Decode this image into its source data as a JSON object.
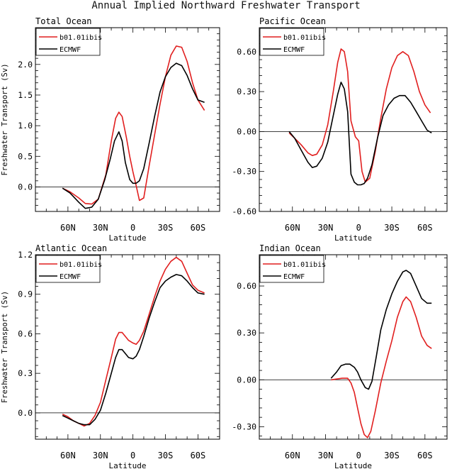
{
  "title": "Annual Implied Northward Freshwater Transport",
  "colors": {
    "model": "#e11f1f",
    "obs": "#000000",
    "zero": "#000000"
  },
  "chart_data": [
    {
      "type": "line",
      "title": "Total Ocean",
      "xlabel": "Latitude",
      "ylabel": "Freshwater Transport (Sv)",
      "xlim": [
        90,
        -80
      ],
      "ylim": [
        -0.4,
        2.6
      ],
      "xticks": [
        {
          "v": 60,
          "label": "60N"
        },
        {
          "v": 30,
          "label": "30N"
        },
        {
          "v": 0,
          "label": "0"
        },
        {
          "v": -30,
          "label": "30S"
        },
        {
          "v": -60,
          "label": "60S"
        }
      ],
      "yticks": [
        {
          "v": 0,
          "label": "0.0"
        },
        {
          "v": 0.5,
          "label": "0.5"
        },
        {
          "v": 1,
          "label": "1.0"
        },
        {
          "v": 1.5,
          "label": "1.5"
        },
        {
          "v": 2,
          "label": "2.0"
        }
      ],
      "legend": [
        "b01.01ibis",
        "ECMWF"
      ],
      "series": [
        {
          "name": "b01.01ibis",
          "x": [
            65,
            58,
            50,
            44,
            38,
            32,
            25,
            20,
            16,
            13,
            10,
            6,
            3,
            0,
            -3,
            -6,
            -10,
            -15,
            -20,
            -25,
            -30,
            -35,
            -40,
            -45,
            -50,
            -55,
            -60,
            -66
          ],
          "y": [
            -0.02,
            -0.08,
            -0.18,
            -0.27,
            -0.28,
            -0.2,
            0.2,
            0.75,
            1.12,
            1.22,
            1.15,
            0.8,
            0.5,
            0.25,
            0.02,
            -0.22,
            -0.18,
            0.35,
            0.85,
            1.35,
            1.8,
            2.15,
            2.3,
            2.28,
            2.05,
            1.7,
            1.42,
            1.25
          ]
        },
        {
          "name": "ECMWF",
          "x": [
            65,
            58,
            50,
            44,
            38,
            32,
            26,
            21,
            17,
            13,
            10,
            7,
            3,
            0,
            -3,
            -6,
            -10,
            -15,
            -20,
            -25,
            -30,
            -35,
            -40,
            -45,
            -50,
            -55,
            -60,
            -66
          ],
          "y": [
            -0.02,
            -0.1,
            -0.25,
            -0.35,
            -0.33,
            -0.2,
            0.12,
            0.45,
            0.75,
            0.9,
            0.75,
            0.4,
            0.12,
            0.06,
            0.06,
            0.1,
            0.3,
            0.72,
            1.15,
            1.55,
            1.8,
            1.95,
            2.02,
            1.98,
            1.82,
            1.6,
            1.42,
            1.38
          ]
        }
      ]
    },
    {
      "type": "line",
      "title": "Pacific Ocean",
      "xlabel": "Latitude",
      "ylabel": "",
      "xlim": [
        90,
        -80
      ],
      "ylim": [
        -0.6,
        0.78
      ],
      "xticks": [
        {
          "v": 60,
          "label": "60N"
        },
        {
          "v": 30,
          "label": "30N"
        },
        {
          "v": 0,
          "label": "0"
        },
        {
          "v": -30,
          "label": "30S"
        },
        {
          "v": -60,
          "label": "60S"
        }
      ],
      "yticks": [
        {
          "v": -0.6,
          "label": "-0.60"
        },
        {
          "v": -0.3,
          "label": "-0.30"
        },
        {
          "v": 0,
          "label": "0.00"
        },
        {
          "v": 0.3,
          "label": "0.30"
        },
        {
          "v": 0.6,
          "label": "0.60"
        }
      ],
      "legend": [
        "b01.01ibis",
        "ECMWF"
      ],
      "series": [
        {
          "name": "b01.01ibis",
          "x": [
            63,
            58,
            52,
            46,
            42,
            38,
            33,
            28,
            23,
            19,
            16,
            13,
            10,
            7,
            3,
            0,
            -3,
            -6,
            -10,
            -15,
            -20,
            -25,
            -30,
            -35,
            -40,
            -45,
            -50,
            -55,
            -60,
            -65
          ],
          "y": [
            -0.01,
            -0.05,
            -0.1,
            -0.16,
            -0.18,
            -0.17,
            -0.1,
            0.05,
            0.3,
            0.52,
            0.62,
            0.6,
            0.45,
            0.08,
            -0.04,
            -0.07,
            -0.3,
            -0.38,
            -0.35,
            -0.15,
            0.1,
            0.32,
            0.48,
            0.57,
            0.6,
            0.57,
            0.45,
            0.3,
            0.2,
            0.14
          ]
        },
        {
          "name": "ECMWF",
          "x": [
            63,
            58,
            52,
            46,
            42,
            38,
            33,
            28,
            23,
            19,
            16,
            13,
            10,
            7,
            4,
            1,
            -2,
            -5,
            -8,
            -12,
            -17,
            -22,
            -27,
            -32,
            -37,
            -42,
            -47,
            -52,
            -57,
            -62,
            -66
          ],
          "y": [
            0,
            -0.05,
            -0.14,
            -0.23,
            -0.27,
            -0.26,
            -0.2,
            -0.08,
            0.12,
            0.28,
            0.37,
            0.32,
            0.15,
            -0.32,
            -0.38,
            -0.4,
            -0.4,
            -0.39,
            -0.35,
            -0.25,
            -0.05,
            0.12,
            0.2,
            0.25,
            0.27,
            0.27,
            0.22,
            0.15,
            0.08,
            0.01,
            -0.01
          ]
        }
      ]
    },
    {
      "type": "line",
      "title": "Atlantic Ocean",
      "xlabel": "Latitude",
      "ylabel": "Freshwater Transport (Sv)",
      "xlim": [
        90,
        -80
      ],
      "ylim": [
        -0.2,
        1.2
      ],
      "xticks": [
        {
          "v": 60,
          "label": "60N"
        },
        {
          "v": 30,
          "label": "30N"
        },
        {
          "v": 0,
          "label": "0"
        },
        {
          "v": -30,
          "label": "30S"
        },
        {
          "v": -60,
          "label": "60S"
        }
      ],
      "yticks": [
        {
          "v": 0,
          "label": "0.0"
        },
        {
          "v": 0.3,
          "label": "0.3"
        },
        {
          "v": 0.6,
          "label": "0.6"
        },
        {
          "v": 0.9,
          "label": "0.9"
        },
        {
          "v": 1.2,
          "label": "1.2"
        }
      ],
      "legend": [
        "b01.01ibis",
        "ECMWF"
      ],
      "series": [
        {
          "name": "b01.01ibis",
          "x": [
            65,
            60,
            55,
            50,
            45,
            40,
            35,
            30,
            25,
            20,
            16,
            13,
            10,
            7,
            4,
            0,
            -3,
            -6,
            -10,
            -15,
            -20,
            -25,
            -30,
            -35,
            -40,
            -45,
            -50,
            -55,
            -60,
            -66
          ],
          "y": [
            -0.01,
            -0.03,
            -0.06,
            -0.08,
            -0.1,
            -0.08,
            -0.02,
            0.08,
            0.25,
            0.42,
            0.56,
            0.61,
            0.61,
            0.58,
            0.55,
            0.53,
            0.52,
            0.55,
            0.62,
            0.75,
            0.88,
            1.0,
            1.09,
            1.15,
            1.18,
            1.15,
            1.06,
            0.97,
            0.93,
            0.91
          ]
        },
        {
          "name": "ECMWF",
          "x": [
            65,
            60,
            55,
            50,
            45,
            40,
            35,
            30,
            25,
            20,
            16,
            13,
            10,
            7,
            4,
            0,
            -3,
            -6,
            -10,
            -15,
            -20,
            -25,
            -30,
            -35,
            -40,
            -45,
            -50,
            -55,
            -60,
            -66
          ],
          "y": [
            -0.02,
            -0.04,
            -0.06,
            -0.08,
            -0.09,
            -0.09,
            -0.05,
            0.02,
            0.15,
            0.3,
            0.42,
            0.48,
            0.48,
            0.45,
            0.42,
            0.41,
            0.43,
            0.48,
            0.58,
            0.72,
            0.84,
            0.95,
            1.0,
            1.03,
            1.05,
            1.04,
            1.0,
            0.95,
            0.91,
            0.9
          ]
        }
      ]
    },
    {
      "type": "line",
      "title": "Indian Ocean",
      "xlabel": "Latitude",
      "ylabel": "",
      "xlim": [
        90,
        -80
      ],
      "ylim": [
        -0.38,
        0.8
      ],
      "xticks": [
        {
          "v": 60,
          "label": "60N"
        },
        {
          "v": 30,
          "label": "30N"
        },
        {
          "v": 0,
          "label": "0"
        },
        {
          "v": -30,
          "label": "30S"
        },
        {
          "v": -60,
          "label": "60S"
        }
      ],
      "yticks": [
        {
          "v": -0.3,
          "label": "-0.30"
        },
        {
          "v": 0,
          "label": "0.00"
        },
        {
          "v": 0.3,
          "label": "0.30"
        },
        {
          "v": 0.6,
          "label": "0.60"
        }
      ],
      "legend": [
        "b01.01ibis",
        "ECMWF"
      ],
      "series": [
        {
          "name": "b01.01ibis",
          "x": [
            25,
            20,
            15,
            10,
            7,
            4,
            1,
            -2,
            -5,
            -8,
            -11,
            -15,
            -20,
            -25,
            -30,
            -35,
            -40,
            -43,
            -47,
            -52,
            -57,
            -62,
            -66
          ],
          "y": [
            0.0,
            0.005,
            0.01,
            0.01,
            -0.02,
            -0.08,
            -0.18,
            -0.28,
            -0.35,
            -0.37,
            -0.33,
            -0.2,
            -0.02,
            0.12,
            0.25,
            0.4,
            0.5,
            0.53,
            0.5,
            0.4,
            0.28,
            0.22,
            0.2
          ]
        },
        {
          "name": "ECMWF",
          "x": [
            25,
            20,
            16,
            12,
            8,
            4,
            1,
            -2,
            -6,
            -9,
            -12,
            -16,
            -20,
            -25,
            -30,
            -35,
            -40,
            -43,
            -47,
            -52,
            -57,
            -62,
            -66
          ],
          "y": [
            0.01,
            0.05,
            0.09,
            0.1,
            0.1,
            0.08,
            0.05,
            0.0,
            -0.05,
            -0.06,
            -0.01,
            0.15,
            0.32,
            0.45,
            0.55,
            0.63,
            0.69,
            0.7,
            0.68,
            0.6,
            0.52,
            0.49,
            0.49
          ]
        }
      ]
    }
  ]
}
